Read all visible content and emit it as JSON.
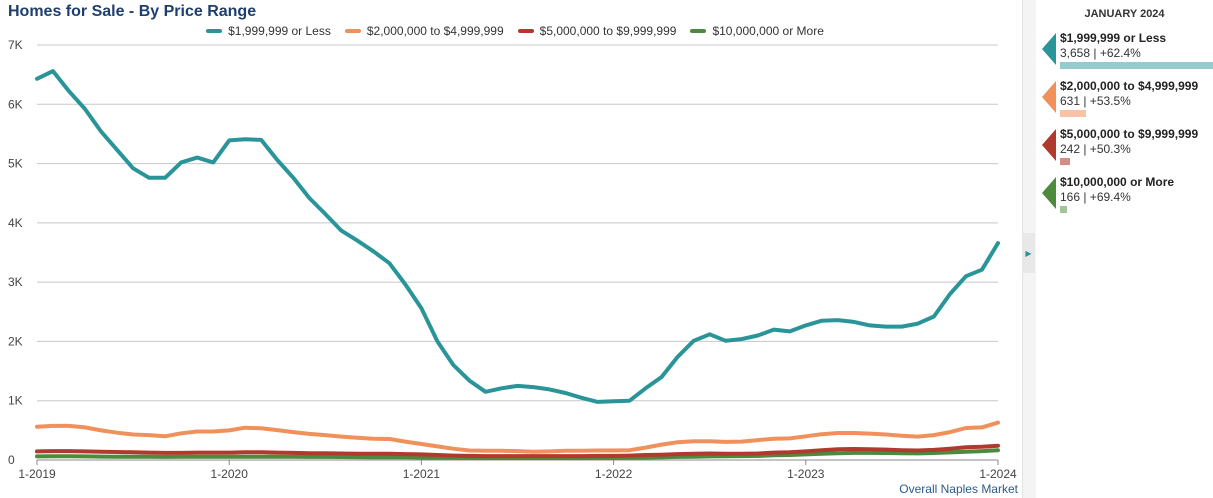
{
  "chart_data": {
    "type": "line",
    "title": "Homes for Sale - By Price Range",
    "xlabel": "",
    "ylabel": "",
    "ylim": [
      0,
      7000
    ],
    "yticks": [
      "0",
      "1K",
      "2K",
      "3K",
      "4K",
      "5K",
      "6K",
      "7K"
    ],
    "yticks_values": [
      0,
      1000,
      2000,
      3000,
      4000,
      5000,
      6000,
      7000
    ],
    "xticks": [
      "1-2019",
      "1-2020",
      "1-2021",
      "1-2022",
      "1-2023",
      "1-2024"
    ],
    "xticks_index": [
      0,
      12,
      24,
      36,
      48,
      60
    ],
    "grid": true,
    "legend": "top-center",
    "series": [
      {
        "name": "$1,999,999 or Less",
        "color": "#2a9599",
        "values": [
          6430,
          6560,
          6220,
          5920,
          5540,
          5230,
          4920,
          4760,
          4760,
          5020,
          5100,
          5020,
          5390,
          5410,
          5400,
          5060,
          4760,
          4420,
          4150,
          3870,
          3700,
          3520,
          3320,
          2960,
          2560,
          2000,
          1600,
          1340,
          1150,
          1210,
          1250,
          1230,
          1190,
          1130,
          1050,
          980,
          990,
          1000,
          1210,
          1400,
          1740,
          2010,
          2120,
          2010,
          2040,
          2100,
          2200,
          2170,
          2270,
          2350,
          2360,
          2330,
          2270,
          2250,
          2250,
          2300,
          2420,
          2800,
          3100,
          3210,
          3658
        ]
      },
      {
        "name": "$2,000,000 to $4,999,999",
        "color": "#f0905a",
        "values": [
          560,
          575,
          575,
          550,
          500,
          460,
          430,
          420,
          400,
          450,
          480,
          480,
          500,
          545,
          535,
          505,
          470,
          440,
          420,
          395,
          375,
          360,
          355,
          310,
          270,
          230,
          190,
          160,
          155,
          155,
          150,
          140,
          145,
          155,
          155,
          160,
          160,
          165,
          210,
          260,
          300,
          315,
          315,
          305,
          310,
          335,
          360,
          365,
          400,
          435,
          455,
          455,
          445,
          430,
          410,
          395,
          420,
          470,
          540,
          550,
          631
        ]
      },
      {
        "name": "$5,000,000 to $9,999,999",
        "color": "#b03a2e",
        "values": [
          145,
          150,
          150,
          145,
          140,
          135,
          130,
          125,
          120,
          120,
          125,
          125,
          125,
          130,
          130,
          125,
          120,
          115,
          115,
          110,
          105,
          105,
          105,
          100,
          95,
          85,
          75,
          70,
          65,
          65,
          65,
          65,
          65,
          65,
          65,
          70,
          70,
          75,
          85,
          90,
          100,
          105,
          110,
          105,
          105,
          110,
          125,
          130,
          145,
          165,
          180,
          185,
          180,
          175,
          165,
          160,
          170,
          190,
          215,
          225,
          242
        ]
      },
      {
        "name": "$10,000,000 or More",
        "color": "#4e8a3e",
        "values": [
          60,
          62,
          62,
          60,
          58,
          56,
          55,
          54,
          53,
          54,
          55,
          55,
          55,
          56,
          56,
          55,
          54,
          53,
          52,
          50,
          49,
          48,
          47,
          45,
          43,
          40,
          37,
          35,
          33,
          33,
          33,
          33,
          33,
          34,
          35,
          36,
          37,
          38,
          42,
          46,
          52,
          56,
          60,
          62,
          65,
          70,
          80,
          85,
          95,
          105,
          115,
          120,
          120,
          118,
          115,
          112,
          118,
          128,
          140,
          150,
          166
        ]
      }
    ]
  },
  "side_panel": {
    "title": "JANUARY 2024",
    "items": [
      {
        "label": "$1,999,999 or Less",
        "sub": "3,658 | +62.4%",
        "bar_fraction": 1.0,
        "color": "#2a9599",
        "bar_color": "#95cbcc"
      },
      {
        "label": "$2,000,000 to $4,999,999",
        "sub": "631 | +53.5%",
        "bar_fraction": 0.1725,
        "color": "#f0905a",
        "bar_color": "#f7c3a4"
      },
      {
        "label": "$5,000,000 to $9,999,999",
        "sub": "242 | +50.3%",
        "bar_fraction": 0.0662,
        "color": "#b03a2e",
        "bar_color": "#d48d86"
      },
      {
        "label": "$10,000,000 or More",
        "sub": "166 | +69.4%",
        "bar_fraction": 0.0454,
        "color": "#4e8a3e",
        "bar_color": "#a3c49a"
      }
    ]
  },
  "footnote": "Overall Naples Market"
}
